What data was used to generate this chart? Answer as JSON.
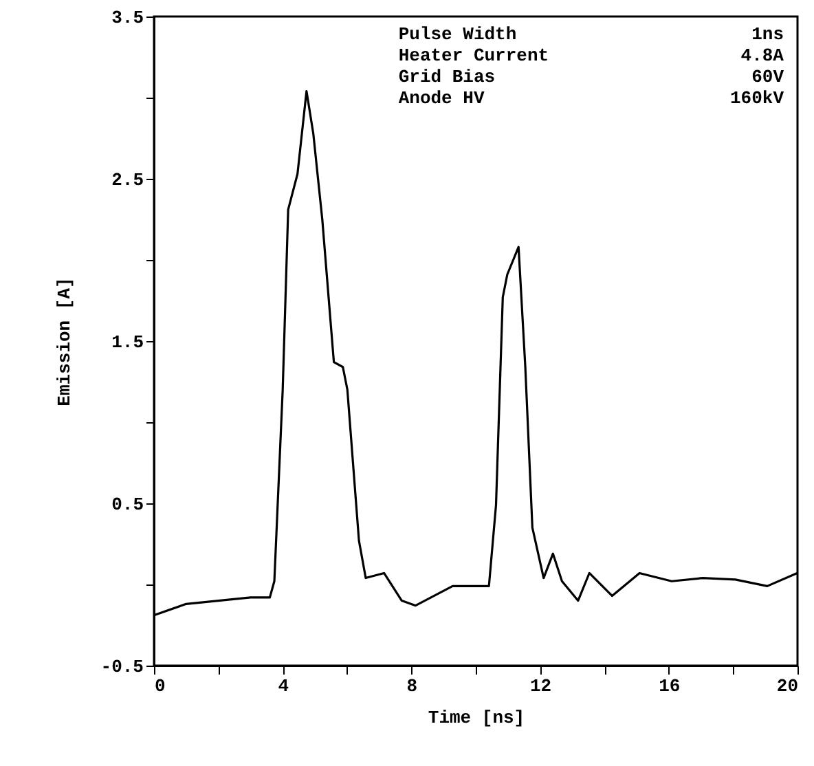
{
  "chart_data": {
    "type": "line",
    "xlabel": "Time [ns]",
    "ylabel": "Emission [A]",
    "annotations": [
      "Pulse Width 1ns",
      "Heater Current 4.8A",
      "Grid Bias 60V",
      "Anode HV 160kV"
    ],
    "series": [
      {
        "color": "#000000",
        "x": [
          0,
          1.0,
          2.0,
          3.0,
          3.6,
          3.74,
          4.0,
          4.17,
          4.46,
          4.74,
          4.95,
          5.23,
          5.59,
          5.87,
          6.01,
          6.37,
          6.58,
          7.15,
          7.7,
          8.13,
          9.28,
          10.41,
          10.63,
          10.84,
          10.98,
          11.33,
          11.54,
          11.76,
          12.11,
          12.4,
          12.68,
          13.18,
          13.53,
          14.24,
          15.09,
          16.09,
          17.06,
          18.07,
          19.06,
          19.99
        ],
        "values": [
          -0.19,
          -0.12,
          -0.1,
          -0.08,
          -0.08,
          0.02,
          1.2,
          2.31,
          2.53,
          3.04,
          2.78,
          2.25,
          1.37,
          1.34,
          1.2,
          0.27,
          0.04,
          0.07,
          -0.1,
          -0.13,
          -0.01,
          -0.01,
          0.49,
          1.77,
          1.91,
          2.08,
          1.34,
          0.35,
          0.04,
          0.19,
          0.02,
          -0.1,
          0.07,
          -0.07,
          0.07,
          0.02,
          0.04,
          0.03,
          -0.01,
          0.07
        ]
      }
    ],
    "xlim": [
      0,
      20
    ],
    "ylim": [
      -0.5,
      3.5
    ],
    "xticks": [
      0,
      {
        "value": 2,
        "label": null
      },
      4,
      {
        "value": 6,
        "label": null
      },
      8,
      {
        "value": 10,
        "label": null
      },
      12,
      {
        "value": 14,
        "label": null
      },
      16,
      {
        "value": 18,
        "label": null
      },
      20
    ],
    "yticks": [
      -0.5,
      {
        "value": 0,
        "label": null
      },
      0.5,
      {
        "value": 1,
        "label": null
      },
      1.5,
      {
        "value": 2,
        "label": null
      },
      2.5,
      {
        "value": 3,
        "label": null
      },
      3.5
    ],
    "grid": false,
    "marker": "none",
    "line_style": "solid"
  }
}
